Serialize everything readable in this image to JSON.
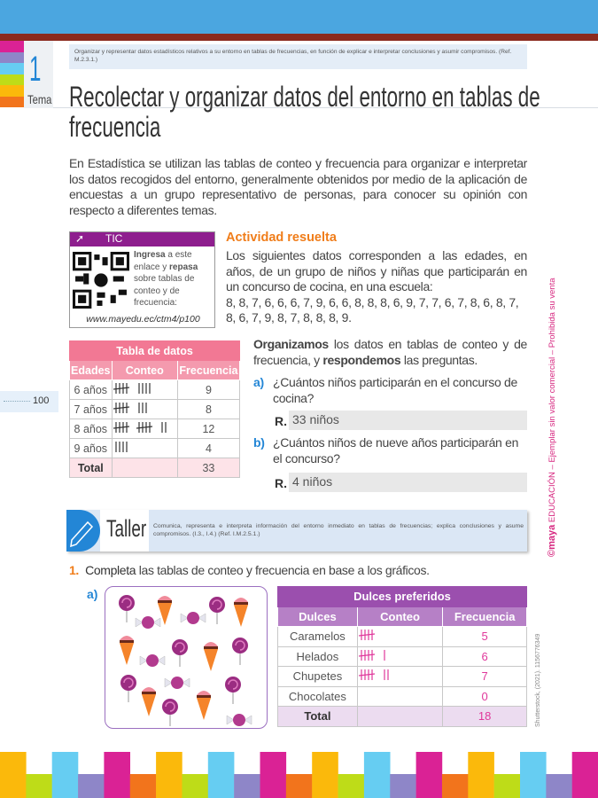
{
  "header": {
    "objective": "Organizar y representar datos estadísticos relativos a su entorno en tablas de frecuencias, en función de explicar e interpretar conclusiones y asumir compromisos. (Ref. M.2.3.1.)",
    "topic_number": "1",
    "topic_label": "Tema",
    "title": "Recolectar y organizar datos del entorno en tablas de frecuencia"
  },
  "intro": "En Estadística se utilizan las tablas de conteo y frecuencia para organizar e interpretar los datos recogidos del entorno, generalmente obtenidos por medio de la aplicación de encuestas a un grupo representativo de personas, para conocer su opinión con respecto a diferentes temas.",
  "tic": {
    "label": "TIC",
    "text_bold1": "Ingresa",
    "text1": " a este enlace y ",
    "text_bold2": "repasa",
    "text2": " sobre tablas de conteo y de frecuencia:",
    "url": "www.mayedu.ec/ctm4/p100"
  },
  "activity": {
    "title": "Actividad resuelta",
    "text": "Los siguientes datos corresponden a las edades, en años, de un grupo de niños y niñas que participarán en un concurso de cocina, en una escuela:",
    "data": "8, 8, 7, 6, 6, 6, 7, 9, 6, 6, 8, 8, 8, 6, 9, 7, 7, 6, 7, 8, 6, 8, 7, 8, 6, 7, 9, 8, 7, 8, 8, 8, 9."
  },
  "data_table": {
    "title": "Tabla de datos",
    "headers": [
      "Edades",
      "Conteo",
      "Frecuencia"
    ],
    "rows": [
      {
        "label": "6 años",
        "freq": "9"
      },
      {
        "label": "7 años",
        "freq": "8"
      },
      {
        "label": "8 años",
        "freq": "12"
      },
      {
        "label": "9 años",
        "freq": "4"
      }
    ],
    "total_label": "Total",
    "total": "33"
  },
  "organize": {
    "bold1": "Organizamos",
    "text1": " los datos en tablas de conteo y de frecuencia, y ",
    "bold2": "respondemos",
    "text2": " las preguntas."
  },
  "questions": [
    {
      "letter": "a)",
      "text": "¿Cuántos niños participarán en el concurso de cocina?",
      "r": "R.",
      "answer": "33 niños"
    },
    {
      "letter": "b)",
      "text": "¿Cuántos niños de nueve años participarán en el concurso?",
      "r": "R.",
      "answer": "4 niños"
    }
  ],
  "page_number": "100",
  "taller": {
    "label": "Taller",
    "text": "Comunica, representa e interpreta información del entorno inmediato en tablas de frecuencias; explica conclusiones y asume compromisos. (I.3., I.4.) (Ref. I.M.2.5.1.)"
  },
  "exercise": {
    "number": "1.",
    "bold": "Completa",
    "text": " las tablas de conteo y frecuencia en base a los gráficos.",
    "sub": "a)"
  },
  "candy_table": {
    "title": "Dulces preferidos",
    "headers": [
      "Dulces",
      "Conteo",
      "Frecuencia"
    ],
    "rows": [
      {
        "label": "Caramelos",
        "freq": "5"
      },
      {
        "label": "Helados",
        "freq": "6"
      },
      {
        "label": "Chupetes",
        "freq": "7"
      },
      {
        "label": "Chocolates",
        "freq": "0"
      }
    ],
    "total_label": "Total",
    "total": "18"
  },
  "credit": "Shutterstock, (2021). 1156776349",
  "watermark": {
    "brand": "©maya",
    "text": " EDUCACIÓN – Ejemplar sin valor comercial – Prohibida su venta"
  },
  "colors": {
    "blue": "#2386d6",
    "orange": "#f07d1a",
    "purple": "#8e1e8e",
    "pink": "#f27894",
    "magenta": "#e0389b"
  }
}
